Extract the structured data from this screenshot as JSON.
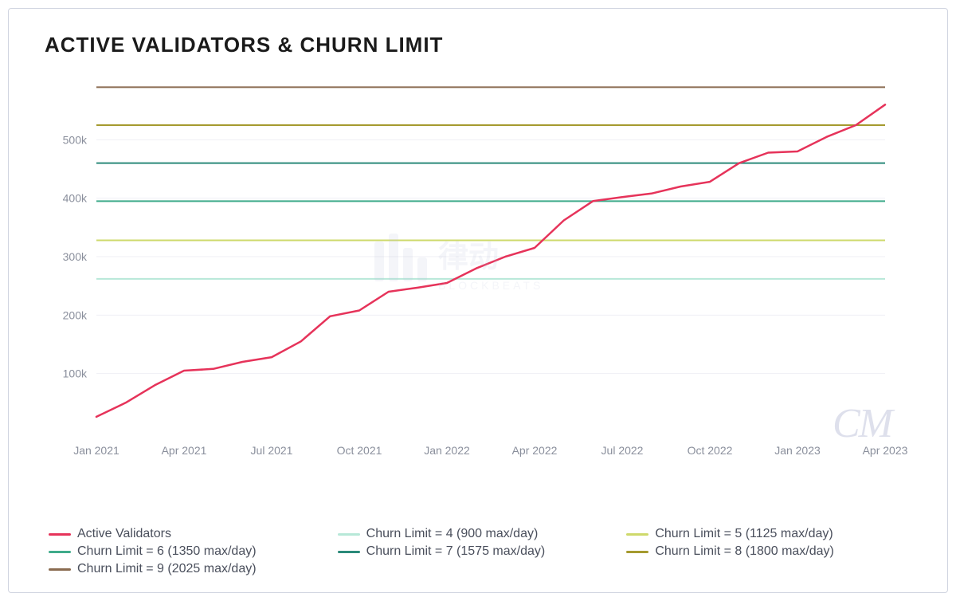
{
  "title": "ACTIVE VALIDATORS & CHURN LIMIT",
  "chart": {
    "type": "line",
    "background_color": "#ffffff",
    "border_color": "#d0d4e0",
    "grid_color": "#efeff5",
    "axis_label_color": "#8a8f9c",
    "axis_label_fontsize": 14,
    "title_color": "#1a1a1a",
    "title_fontsize": 26,
    "title_fontweight": 700,
    "ylim": [
      0,
      600000
    ],
    "yticks": [
      100000,
      200000,
      300000,
      400000,
      500000
    ],
    "ytick_labels": [
      "100k",
      "200k",
      "300k",
      "400k",
      "500k"
    ],
    "xticks_index": [
      0,
      3,
      6,
      9,
      12,
      15,
      18,
      21,
      24,
      27
    ],
    "xtick_labels": [
      "Jan 2021",
      "Apr 2021",
      "Jul 2021",
      "Oct 2021",
      "Jan 2022",
      "Apr 2022",
      "Jul 2022",
      "Oct 2022",
      "Jan 2023",
      "Apr 2023"
    ],
    "x_count": 28,
    "active_validators": {
      "color": "#e6335a",
      "line_width": 2.5,
      "values": [
        26000,
        50000,
        80000,
        105000,
        108000,
        120000,
        128000,
        155000,
        198000,
        208000,
        240000,
        247000,
        255000,
        280000,
        300000,
        315000,
        362000,
        395000,
        402000,
        408000,
        420000,
        428000,
        460000,
        478000,
        480000,
        505000,
        525000,
        560000
      ]
    },
    "churn_lines": [
      {
        "level": 4,
        "value": 262000,
        "color": "#b7e8d8",
        "line_width": 2
      },
      {
        "level": 5,
        "value": 328000,
        "color": "#ced96b",
        "line_width": 2
      },
      {
        "level": 6,
        "value": 395000,
        "color": "#3fab8b",
        "line_width": 2
      },
      {
        "level": 7,
        "value": 460000,
        "color": "#2b8a7a",
        "line_width": 2
      },
      {
        "level": 8,
        "value": 525000,
        "color": "#a59a2f",
        "line_width": 2
      },
      {
        "level": 9,
        "value": 590000,
        "color": "#8a6b50",
        "line_width": 2
      }
    ]
  },
  "legend": {
    "text_color": "#4a4f5c",
    "fontsize": 16,
    "items": [
      {
        "label": "Active Validators",
        "color": "#e6335a"
      },
      {
        "label": "Churn Limit = 4 (900 max/day)",
        "color": "#b7e8d8"
      },
      {
        "label": "Churn Limit = 5 (1125 max/day)",
        "color": "#ced96b"
      },
      {
        "label": "Churn Limit = 6 (1350 max/day)",
        "color": "#3fab8b"
      },
      {
        "label": "Churn Limit = 7 (1575 max/day)",
        "color": "#2b8a7a"
      },
      {
        "label": "Churn Limit = 8 (1800 max/day)",
        "color": "#a59a2f"
      },
      {
        "label": "Churn Limit = 9 (2025 max/day)",
        "color": "#8a6b50"
      }
    ]
  },
  "watermarks": {
    "mid_text_cn": "律动",
    "mid_text_en": "BLOCKBEATS",
    "mid_color": "#b9c0d8",
    "cm_text": "CM",
    "cm_color": "#c9cde0"
  }
}
